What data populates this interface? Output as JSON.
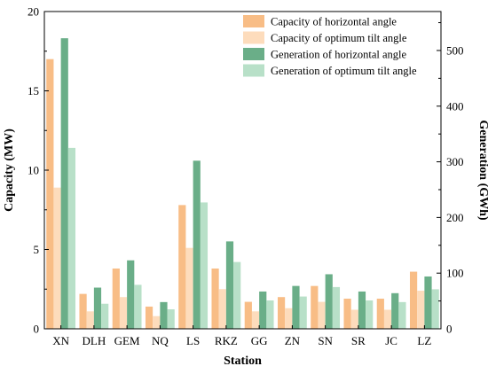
{
  "chart_data": {
    "type": "bar",
    "xlabel": "Station",
    "ylabel_left": "Capacity (MW)",
    "ylabel_right": "Generation (GWh)",
    "ylim_left": [
      0,
      20
    ],
    "ylim_right": [
      0,
      570
    ],
    "yticks_left": [
      0,
      5,
      10,
      15,
      20
    ],
    "yticks_right": [
      0,
      100,
      200,
      300,
      400,
      500
    ],
    "grid": false,
    "legend_position": "top-right",
    "categories": [
      "XN",
      "DLH",
      "GEM",
      "NQ",
      "LS",
      "RKZ",
      "GG",
      "ZN",
      "SN",
      "SR",
      "JC",
      "LZ"
    ],
    "series": [
      {
        "name": "Capacity of horizontal angle",
        "axis": "left",
        "color": "#f8bd86",
        "values": [
          17.0,
          2.2,
          3.8,
          1.4,
          7.8,
          3.8,
          1.7,
          2.0,
          2.7,
          1.9,
          1.9,
          3.6
        ]
      },
      {
        "name": "Capacity of optimum tilt angle",
        "axis": "left",
        "color": "#fddcbc",
        "values": [
          8.9,
          1.1,
          2.0,
          0.8,
          5.1,
          2.5,
          1.1,
          1.3,
          1.7,
          1.2,
          1.2,
          2.4
        ]
      },
      {
        "name": "Generation of horizontal angle",
        "axis": "right",
        "color": "#6aae88",
        "values": [
          522,
          74,
          123,
          48,
          302,
          157,
          67,
          77,
          98,
          67,
          64,
          94
        ]
      },
      {
        "name": "Generation of optimum tilt angle",
        "axis": "right",
        "color": "#b8e0c8",
        "values": [
          325,
          45,
          79,
          35,
          227,
          120,
          51,
          58,
          75,
          51,
          48,
          71
        ]
      }
    ]
  }
}
